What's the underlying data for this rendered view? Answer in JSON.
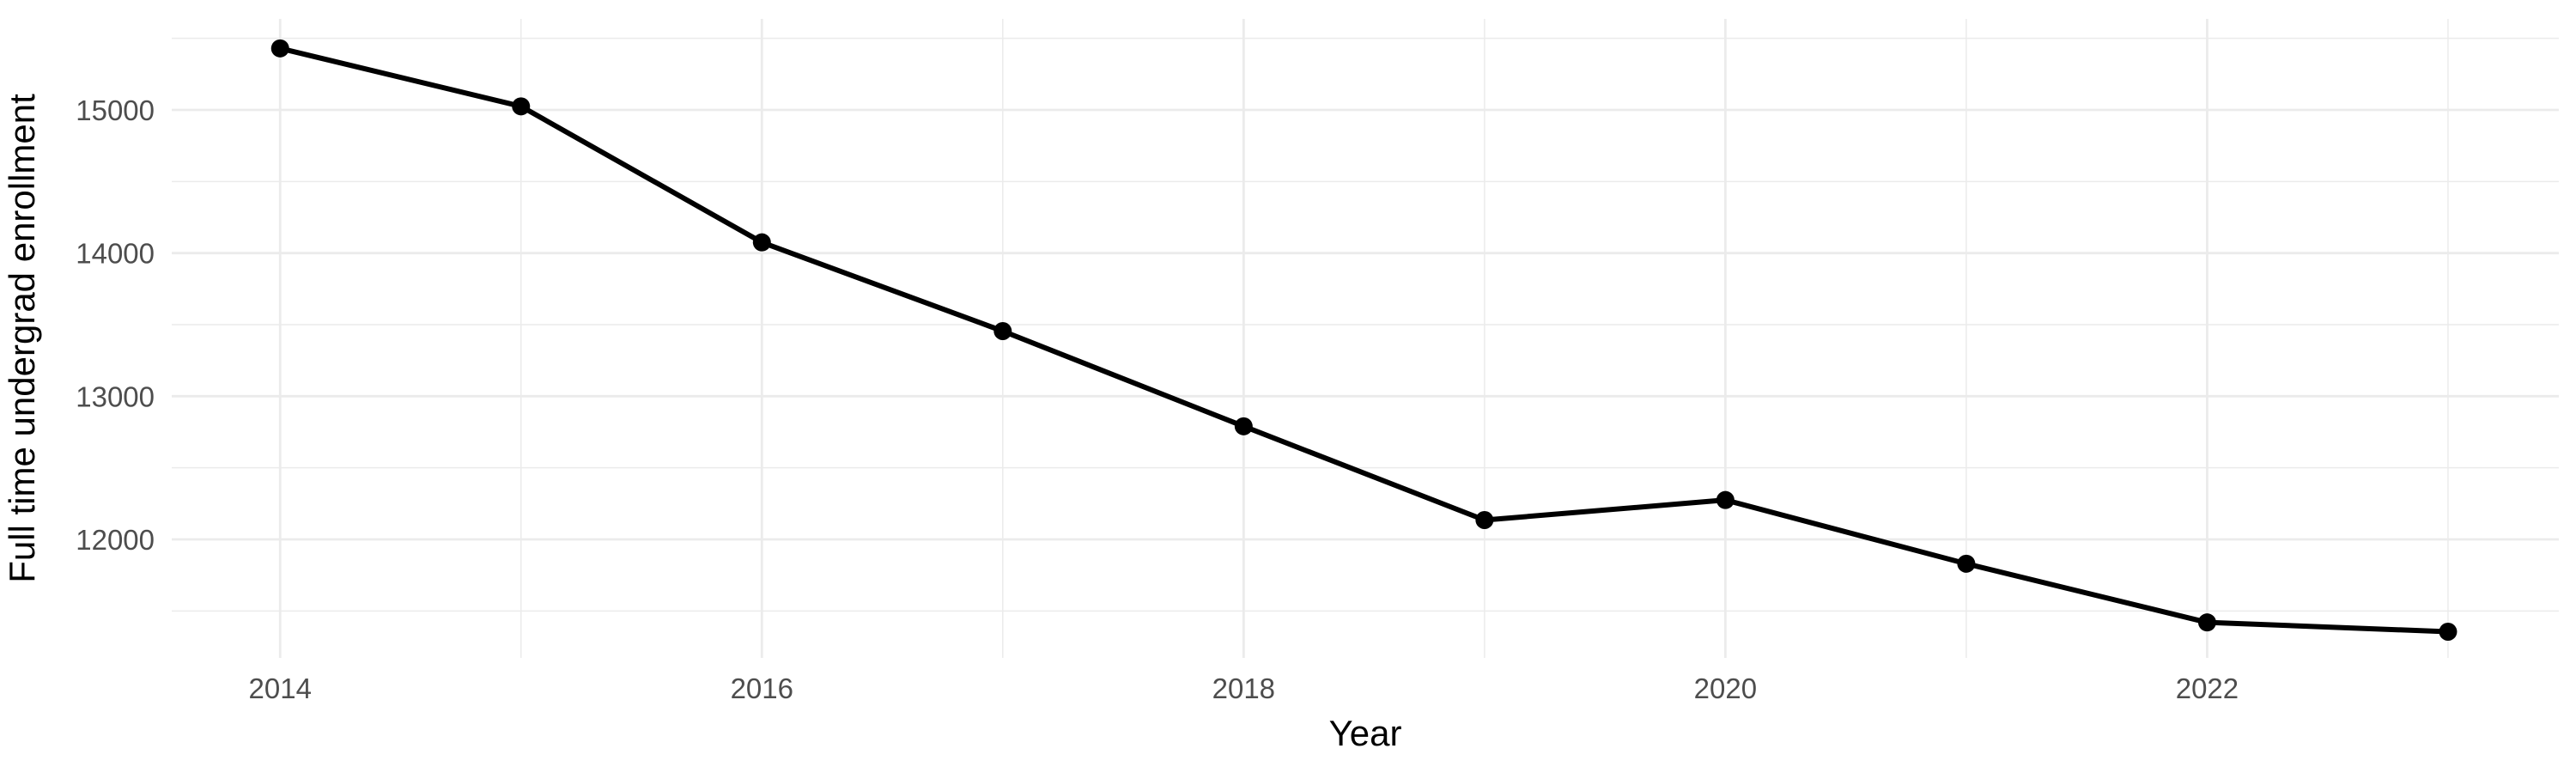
{
  "chart_data": {
    "type": "line",
    "title": "",
    "xlabel": "Year",
    "ylabel": "Full time undergrad enrollment",
    "x": [
      2014,
      2015,
      2016,
      2017,
      2018,
      2019,
      2020,
      2021,
      2022,
      2023
    ],
    "series": [
      {
        "name": "Full time undergrad enrollment",
        "values": [
          15430,
          15025,
          14075,
          13455,
          12790,
          12135,
          12275,
          11830,
          11420,
          11355
        ]
      }
    ],
    "x_tick_labels": [
      "2014",
      "2016",
      "2018",
      "2020",
      "2022"
    ],
    "x_major_ticks": [
      2014,
      2016,
      2018,
      2020,
      2022
    ],
    "x_minor_gridlines": [
      2015,
      2017,
      2019,
      2021,
      2023
    ],
    "y_tick_labels": [
      "12000",
      "13000",
      "14000",
      "15000"
    ],
    "y_major_ticks": [
      12000,
      13000,
      14000,
      15000
    ],
    "y_minor_gridlines": [
      11500,
      12500,
      13500,
      14500,
      15500
    ],
    "xlim": [
      2013.55,
      2023.46
    ],
    "ylim": [
      11172,
      15636
    ],
    "grid": true,
    "legend": false,
    "marker": "point",
    "colors": {
      "line": "#000000",
      "point": "#000000",
      "grid": "#ebebeb",
      "tick_label": "#4d4d4d",
      "axis_title": "#000000",
      "background": "#ffffff"
    }
  }
}
